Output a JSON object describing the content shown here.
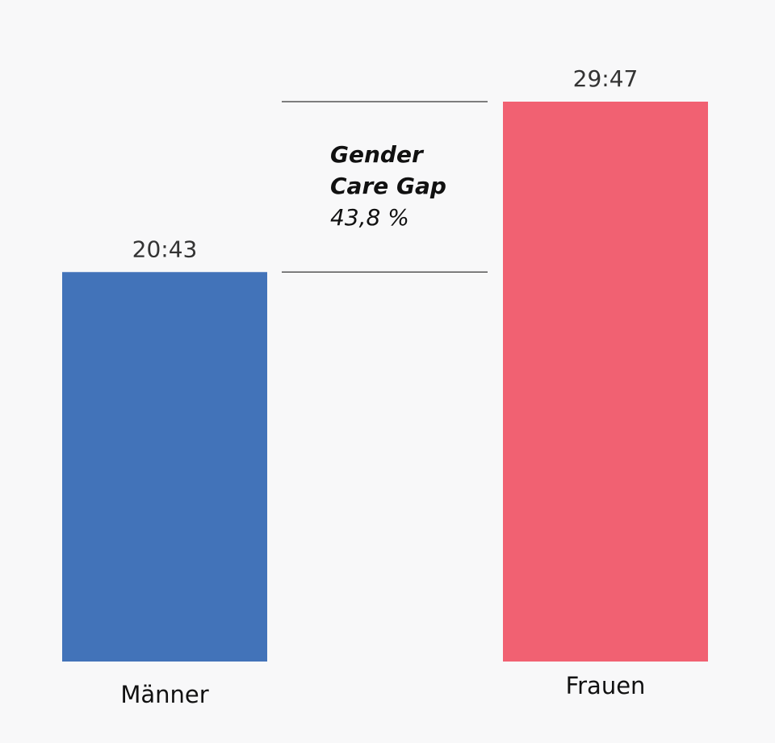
{
  "chart_data": {
    "type": "bar",
    "categories": [
      "Männer",
      "Frauen"
    ],
    "values": [
      20.717,
      29.783
    ],
    "value_labels": [
      "20:43",
      "29:47"
    ],
    "colors": [
      "#4273b9",
      "#f16172"
    ],
    "ylim": [
      0,
      30
    ],
    "annotation": {
      "title_line1": "Gender",
      "title_line2": "Care Gap",
      "value": "43,8 %"
    }
  }
}
